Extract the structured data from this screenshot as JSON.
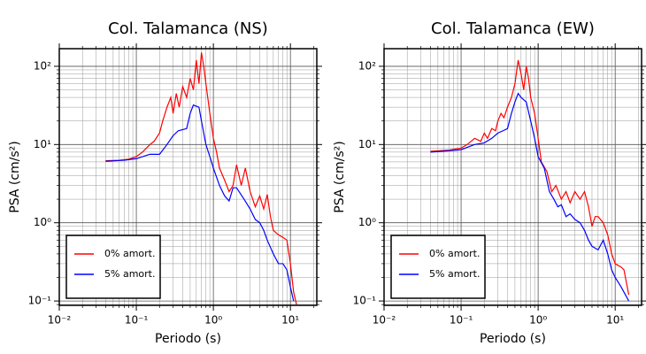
{
  "chart_data": [
    {
      "type": "line",
      "title": "Col. Talamanca (NS)",
      "xlabel": "Periodo (s)",
      "ylabel": "PSA (cm/s²)",
      "xscale": "log",
      "yscale": "log",
      "grid": true,
      "legend": "lower left",
      "xlim": [
        0.01,
        22
      ],
      "ylim": [
        0.088,
        168
      ],
      "xticks": [
        {
          "value": 0.01,
          "label": "10⁻²"
        },
        {
          "value": 0.1,
          "label": "10⁻¹"
        },
        {
          "value": 1,
          "label": "10⁰"
        },
        {
          "value": 10,
          "label": "10¹"
        }
      ],
      "yticks": [
        {
          "value": 0.1,
          "label": "10⁻¹"
        },
        {
          "value": 1,
          "label": "10⁰"
        },
        {
          "value": 10,
          "label": "10¹"
        },
        {
          "value": 100,
          "label": "10²"
        }
      ],
      "xminor_ticks": [
        0.02,
        0.03,
        0.04,
        0.05,
        0.06,
        0.07,
        0.08,
        0.09,
        0.2,
        0.3,
        0.4,
        0.5,
        0.6,
        0.7,
        0.8,
        0.9,
        2,
        3,
        4,
        5,
        6,
        7,
        8,
        9,
        20
      ],
      "yminor_ticks": [
        0.09,
        0.2,
        0.3,
        0.4,
        0.5,
        0.6,
        0.7,
        0.8,
        0.9,
        2,
        3,
        4,
        5,
        6,
        7,
        8,
        9,
        20,
        30,
        40,
        50,
        60,
        70,
        80,
        90
      ],
      "series": [
        {
          "name": "0% amort.",
          "color": "#ff0000",
          "x": [
            0.04,
            0.06,
            0.08,
            0.1,
            0.12,
            0.15,
            0.17,
            0.2,
            0.22,
            0.25,
            0.28,
            0.3,
            0.33,
            0.36,
            0.4,
            0.45,
            0.5,
            0.55,
            0.6,
            0.65,
            0.7,
            0.75,
            0.8,
            0.9,
            1.0,
            1.1,
            1.2,
            1.4,
            1.6,
            1.8,
            2.0,
            2.3,
            2.6,
            3,
            3.5,
            4,
            4.5,
            5,
            5.5,
            6,
            7,
            8,
            9,
            10,
            11,
            12
          ],
          "values": [
            6.2,
            6.3,
            6.5,
            7,
            8,
            10,
            11,
            14,
            20,
            30,
            40,
            25,
            45,
            30,
            55,
            40,
            70,
            50,
            120,
            60,
            150,
            100,
            60,
            25,
            12,
            8,
            5,
            3.5,
            2.5,
            3.0,
            5.5,
            3.0,
            5,
            2.5,
            1.6,
            2.2,
            1.5,
            2.3,
            1.2,
            0.8,
            0.7,
            0.65,
            0.6,
            0.3,
            0.13,
            0.09
          ]
        },
        {
          "name": "5% amort.",
          "color": "#0000ff",
          "x": [
            0.04,
            0.07,
            0.1,
            0.15,
            0.2,
            0.25,
            0.3,
            0.35,
            0.45,
            0.5,
            0.55,
            0.65,
            0.7,
            0.8,
            0.9,
            1.0,
            1.2,
            1.4,
            1.6,
            1.8,
            2.0,
            2.5,
            3,
            3.5,
            4,
            4.5,
            5,
            6,
            7,
            8,
            9,
            10,
            11
          ],
          "values": [
            6.1,
            6.3,
            6.6,
            7.5,
            7.5,
            10,
            13,
            15,
            16,
            25,
            32,
            30,
            20,
            10,
            7,
            5,
            3,
            2.2,
            1.9,
            2.8,
            2.8,
            2.0,
            1.5,
            1.1,
            1.0,
            0.8,
            0.6,
            0.4,
            0.3,
            0.3,
            0.25,
            0.15,
            0.1
          ]
        }
      ]
    },
    {
      "type": "line",
      "title": "Col. Talamanca (EW)",
      "xlabel": "Periodo (s)",
      "ylabel": "PSA (cm/s²)",
      "xscale": "log",
      "yscale": "log",
      "grid": true,
      "legend": "lower left",
      "xlim": [
        0.01,
        22
      ],
      "ylim": [
        0.088,
        168
      ],
      "xticks": [
        {
          "value": 0.01,
          "label": "10⁻²"
        },
        {
          "value": 0.1,
          "label": "10⁻¹"
        },
        {
          "value": 1,
          "label": "10⁰"
        },
        {
          "value": 10,
          "label": "10¹"
        }
      ],
      "yticks": [
        {
          "value": 0.1,
          "label": "10⁻¹"
        },
        {
          "value": 1,
          "label": "10⁰"
        },
        {
          "value": 10,
          "label": "10¹"
        },
        {
          "value": 100,
          "label": "10²"
        }
      ],
      "xminor_ticks": [
        0.02,
        0.03,
        0.04,
        0.05,
        0.06,
        0.07,
        0.08,
        0.09,
        0.2,
        0.3,
        0.4,
        0.5,
        0.6,
        0.7,
        0.8,
        0.9,
        2,
        3,
        4,
        5,
        6,
        7,
        8,
        9,
        20
      ],
      "yminor_ticks": [
        0.09,
        0.2,
        0.3,
        0.4,
        0.5,
        0.6,
        0.7,
        0.8,
        0.9,
        2,
        3,
        4,
        5,
        6,
        7,
        8,
        9,
        20,
        30,
        40,
        50,
        60,
        70,
        80,
        90
      ],
      "series": [
        {
          "name": "0% amort.",
          "color": "#ff0000",
          "x": [
            0.04,
            0.07,
            0.1,
            0.12,
            0.15,
            0.18,
            0.2,
            0.22,
            0.25,
            0.28,
            0.3,
            0.33,
            0.36,
            0.4,
            0.45,
            0.5,
            0.55,
            0.6,
            0.65,
            0.7,
            0.75,
            0.8,
            0.9,
            1.0,
            1.1,
            1.3,
            1.5,
            1.7,
            2,
            2.3,
            2.6,
            3,
            3.5,
            4,
            4.5,
            5,
            5.5,
            6,
            7,
            8,
            9,
            10,
            12,
            13,
            15
          ],
          "values": [
            8.2,
            8.5,
            9,
            10,
            12,
            11,
            14,
            12,
            16,
            15,
            20,
            25,
            22,
            30,
            40,
            60,
            120,
            80,
            50,
            100,
            70,
            40,
            25,
            12,
            6,
            4.5,
            2.5,
            3,
            2.0,
            2.5,
            1.8,
            2.5,
            2.0,
            2.5,
            1.6,
            0.9,
            1.2,
            1.2,
            1.0,
            0.7,
            0.4,
            0.3,
            0.27,
            0.25,
            0.12
          ]
        },
        {
          "name": "5% amort.",
          "color": "#0000ff",
          "x": [
            0.04,
            0.07,
            0.1,
            0.15,
            0.2,
            0.25,
            0.3,
            0.35,
            0.4,
            0.45,
            0.5,
            0.55,
            0.6,
            0.7,
            0.8,
            0.9,
            1.0,
            1.2,
            1.4,
            1.6,
            1.8,
            2,
            2.3,
            2.6,
            3,
            3.5,
            4,
            4.5,
            5,
            6,
            7,
            8,
            9,
            10,
            12,
            15
          ],
          "values": [
            8.0,
            8.3,
            8.6,
            10,
            10.5,
            12,
            14,
            15,
            16,
            25,
            35,
            45,
            40,
            35,
            20,
            12,
            7,
            5,
            2.5,
            2.0,
            1.6,
            1.7,
            1.2,
            1.3,
            1.1,
            1.0,
            0.8,
            0.6,
            0.5,
            0.45,
            0.6,
            0.4,
            0.25,
            0.2,
            0.15,
            0.1
          ]
        }
      ]
    }
  ]
}
